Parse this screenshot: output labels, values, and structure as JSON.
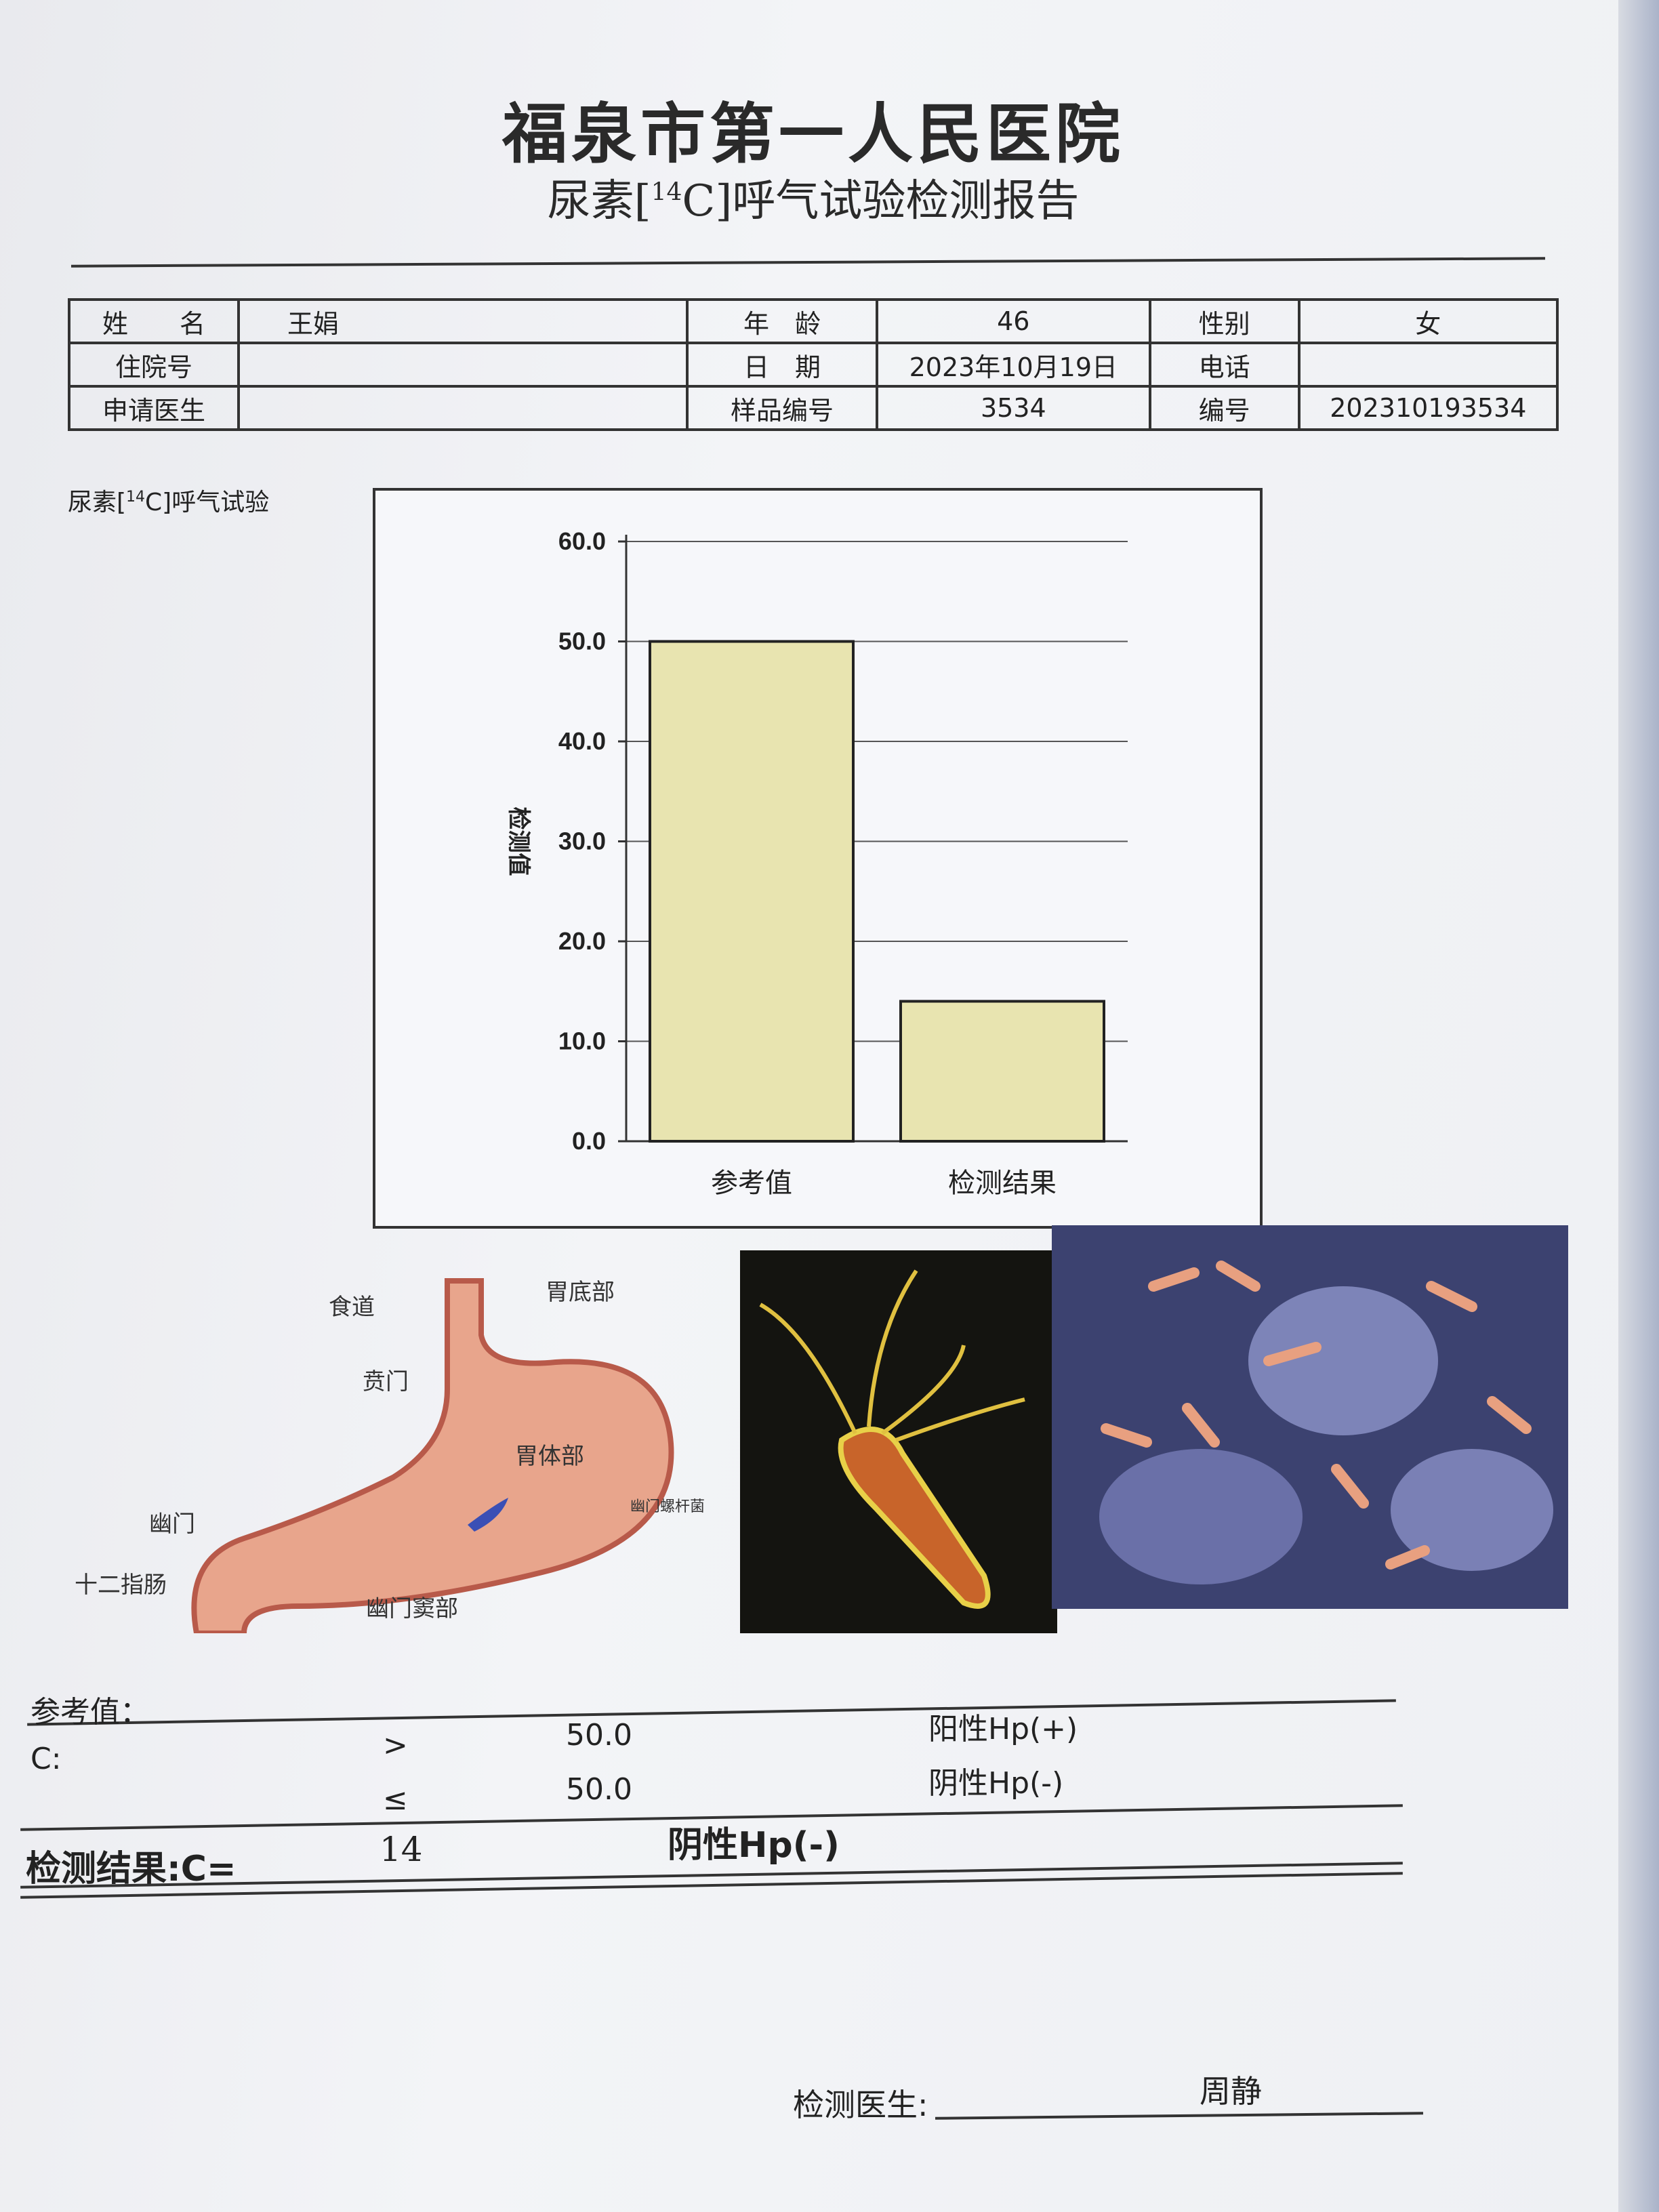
{
  "header": {
    "hospital": "福泉市第一人民医院",
    "report_title_pre": "尿素[",
    "report_title_sup": "14",
    "report_title_post": "C]呼气试验检测报告"
  },
  "patient_table": {
    "rows": [
      [
        {
          "label": "姓　　名",
          "value": "王娟"
        },
        {
          "label": "年　龄",
          "value": "46"
        },
        {
          "label": "性别",
          "value": "女"
        }
      ],
      [
        {
          "label": "住院号",
          "value": ""
        },
        {
          "label": "日　期",
          "value": "2023年10月19日"
        },
        {
          "label": "电话",
          "value": ""
        }
      ],
      [
        {
          "label": "申请医生",
          "value": ""
        },
        {
          "label": "样品编号",
          "value": "3534"
        },
        {
          "label": "编号",
          "value": "202310193534"
        }
      ]
    ]
  },
  "chart_label": {
    "pre": "尿素[",
    "sup": "14",
    "post": "C]呼气试验"
  },
  "chart_data": {
    "type": "bar",
    "categories": [
      "参考值",
      "检测结果"
    ],
    "values": [
      50,
      14
    ],
    "ylabel": "检测值",
    "ylim": [
      0,
      60
    ],
    "yticks": [
      "0.0",
      "10.0",
      "20.0",
      "30.0",
      "40.0",
      "50.0",
      "60.0"
    ],
    "grid": true,
    "bar_color": "#e8e4b0"
  },
  "illustrations": {
    "stomach_labels": {
      "esophagus": "食道",
      "fundus": "胃底部",
      "cardia": "贲门",
      "body": "胃体部",
      "hp": "幽门螺杆菌",
      "pylorus": "幽门",
      "duodenum": "十二指肠",
      "antrum": "幽门窦部"
    }
  },
  "reference": {
    "title": "参考值：",
    "c_label": "C:",
    "rows": [
      {
        "op": ">",
        "value": "50.0",
        "result": "阳性Hp(+)"
      },
      {
        "op": "≤",
        "value": "50.0",
        "result": "阴性Hp(-)"
      }
    ]
  },
  "result": {
    "label": "检测结果:C=",
    "value": "14",
    "interpretation": "阴性Hp(-)"
  },
  "footer": {
    "doctor_label": "检测医生:",
    "doctor_name": "周静"
  }
}
